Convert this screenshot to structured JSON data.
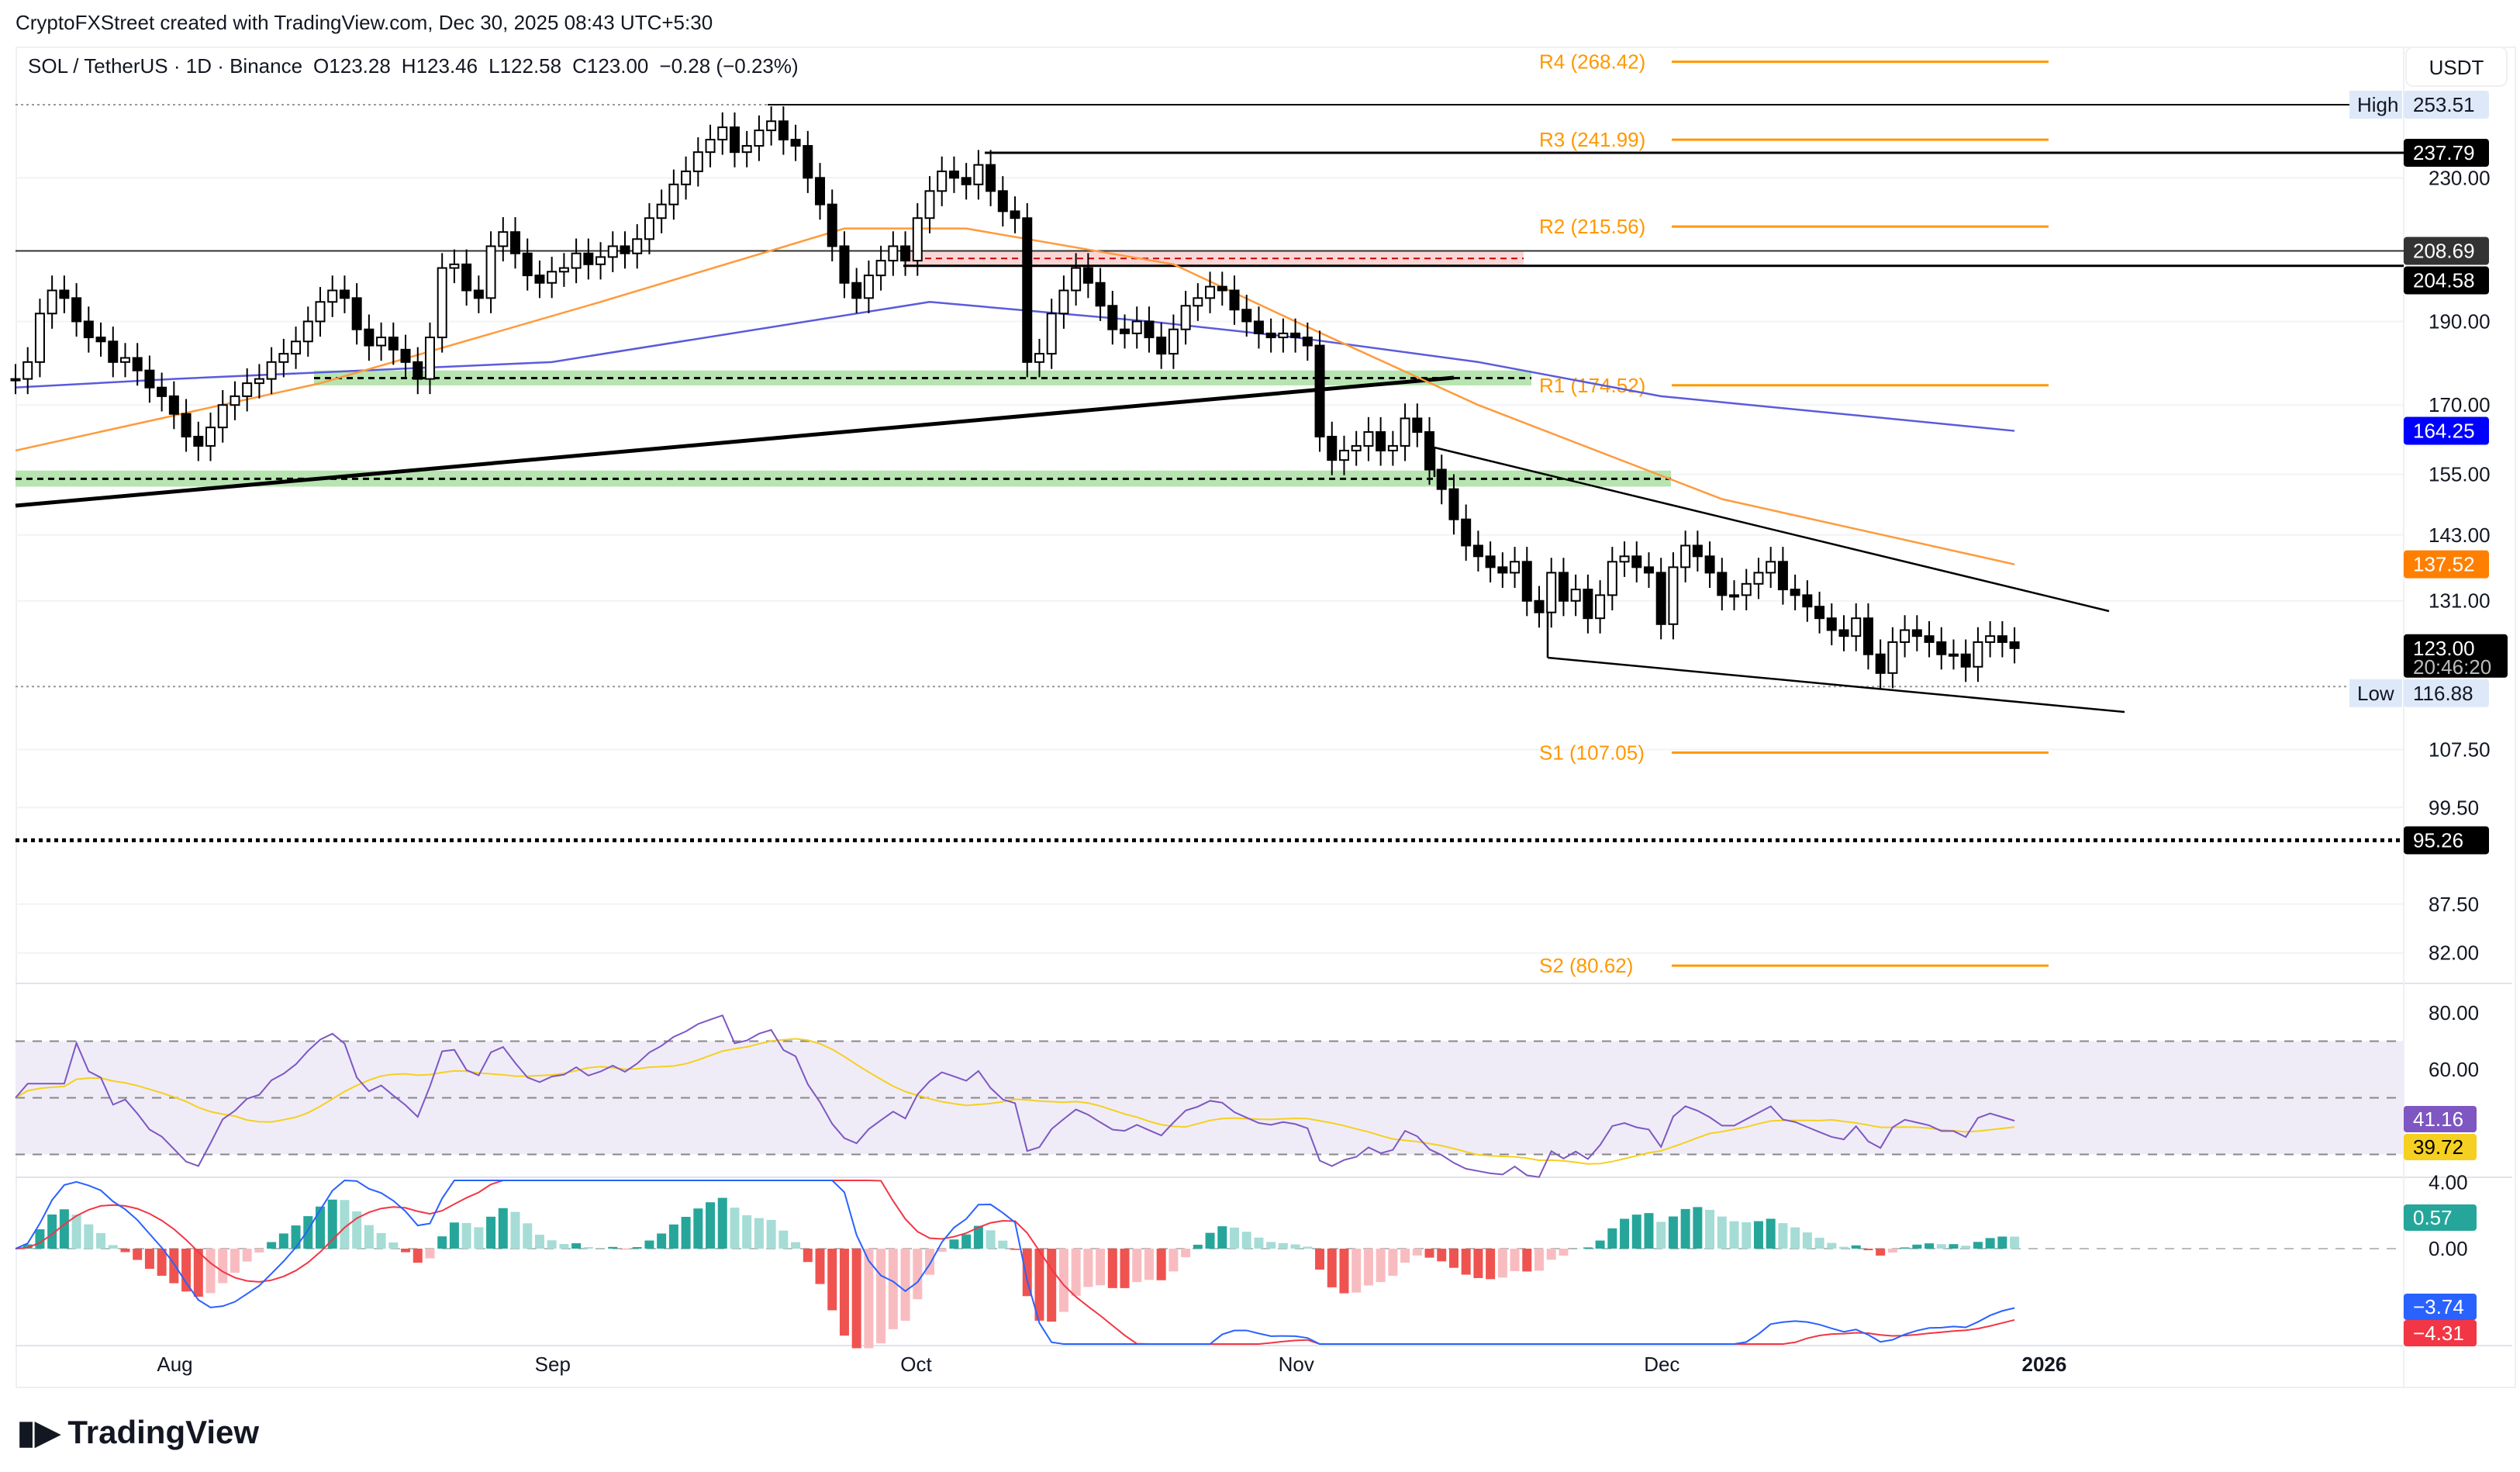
{
  "credit": "CryptoFXStreet created with TradingView.com, Dec 30, 2025 08:43 UTC+5:30",
  "legend": {
    "symbol": "SOL / TetherUS · 1D · Binance",
    "open": "O123.28",
    "high": "H123.46",
    "low": "L122.58",
    "close": "C123.00",
    "change": "−0.28 (−0.23%)"
  },
  "unit": "USDT",
  "logo": "TradingView",
  "colors": {
    "up": "#ffffff",
    "down": "#000000",
    "ema50": "#ff9a3c",
    "ema200": "#5b5bdb",
    "rsi": "#7e57c2",
    "rsi_ma": "#f5d020",
    "pivot": "#ff9800",
    "macd": "#2962ff",
    "signal": "#f23645",
    "hist_up": "#26a69a",
    "hist_down": "#ef5350"
  },
  "chart_data": {
    "type": "candlestick",
    "start_date": "2025-07-19",
    "closes": [
      176,
      180,
      192,
      198,
      196,
      190,
      186,
      185,
      180,
      181,
      178,
      174,
      172,
      168,
      163,
      161,
      165,
      170,
      172,
      175,
      176,
      180,
      182,
      185,
      190,
      195,
      198,
      196,
      188,
      184,
      186,
      183,
      180,
      176,
      186,
      204,
      205,
      198,
      196,
      210,
      214,
      208,
      202,
      200,
      203,
      204,
      208,
      205,
      207,
      210,
      208,
      212,
      218,
      222,
      228,
      232,
      238,
      242,
      246,
      238,
      240,
      245,
      248,
      242,
      240,
      230,
      222,
      210,
      200,
      196,
      202,
      206,
      210,
      206,
      218,
      226,
      232,
      230,
      228,
      234,
      226,
      220,
      218,
      180,
      182,
      192,
      198,
      204,
      200,
      194,
      188,
      187,
      190,
      186,
      182,
      188,
      194,
      196,
      199,
      198,
      193,
      190,
      187,
      186,
      187,
      186,
      184,
      163,
      158,
      160,
      161,
      164,
      160,
      161,
      167,
      164,
      156,
      152,
      146,
      141,
      139,
      137,
      136,
      138,
      131,
      129,
      136,
      131,
      133,
      128,
      132,
      138,
      139,
      137,
      136,
      127,
      137,
      141,
      139,
      136,
      132,
      132,
      134,
      136,
      138,
      133,
      132,
      130,
      128,
      126,
      125,
      128,
      122,
      119,
      124,
      126,
      125,
      124,
      122,
      122,
      120,
      124,
      125,
      124,
      123
    ],
    "ema50": [
      [
        0,
        160
      ],
      [
        25,
        175
      ],
      [
        48,
        195
      ],
      [
        68,
        215
      ],
      [
        78,
        215
      ],
      [
        95,
        205
      ],
      [
        105,
        190
      ],
      [
        120,
        170
      ],
      [
        140,
        150
      ],
      [
        164,
        137.52
      ]
    ],
    "ema200": [
      [
        0,
        174
      ],
      [
        13,
        176
      ],
      [
        44,
        180
      ],
      [
        75,
        195
      ],
      [
        93,
        190
      ],
      [
        105,
        186
      ],
      [
        120,
        180
      ],
      [
        135,
        172
      ],
      [
        164,
        164.25
      ]
    ],
    "x_ticks": [
      {
        "label": "Aug",
        "day": 13
      },
      {
        "label": "Sep",
        "day": 44
      },
      {
        "label": "Oct",
        "day": 74
      },
      {
        "label": "Nov",
        "day": 105
      },
      {
        "label": "Dec",
        "day": 135
      },
      {
        "label": "2026",
        "day": 166
      }
    ],
    "y_ticks": [
      "230.00",
      "190.00",
      "170.00",
      "155.00",
      "143.00",
      "131.00",
      "107.50",
      "99.50",
      "87.50",
      "82.00"
    ],
    "pivots": [
      {
        "label": "R4 (268.42)",
        "value": 268.42
      },
      {
        "label": "R3 (241.99)",
        "value": 241.99
      },
      {
        "label": "R2 (215.56)",
        "value": 215.56
      },
      {
        "label": "R1 (174.52)",
        "value": 174.52
      },
      {
        "label": "S1 (107.05)",
        "value": 107.05
      },
      {
        "label": "S2 (80.62)",
        "value": 80.62
      }
    ],
    "price_labels": [
      {
        "text": "253.51",
        "value": 253.51,
        "bg": "#dde9f8",
        "fg": "#131722",
        "tag": "High"
      },
      {
        "text": "237.79",
        "value": 237.79,
        "bg": "#000",
        "fg": "#fff"
      },
      {
        "text": "208.69",
        "value": 208.69,
        "bg": "#333",
        "fg": "#fff"
      },
      {
        "text": "204.58",
        "value": 204.58,
        "bg": "#000",
        "fg": "#fff"
      },
      {
        "text": "164.25",
        "value": 164.25,
        "bg": "#0000ff",
        "fg": "#fff"
      },
      {
        "text": "137.52",
        "value": 137.52,
        "bg": "#ff7f00",
        "fg": "#fff"
      },
      {
        "text": "123.00",
        "value": 123.0,
        "bg": "#000",
        "fg": "#fff",
        "sub": "20:46:20"
      },
      {
        "text": "116.88",
        "value": 116.88,
        "bg": "#dde9f8",
        "fg": "#131722",
        "tag": "Low"
      },
      {
        "text": "95.26",
        "value": 95.26,
        "bg": "#000",
        "fg": "#fff"
      }
    ],
    "rsi": {
      "ticks": [
        "80.00",
        "60.00"
      ],
      "value": "41.16",
      "ma": "39.72",
      "levels": [
        70,
        50,
        30
      ]
    },
    "macd": {
      "ticks": [
        "4.00",
        "0.00"
      ],
      "hist": "0.57",
      "macd": "−3.74",
      "signal": "−4.31"
    }
  }
}
